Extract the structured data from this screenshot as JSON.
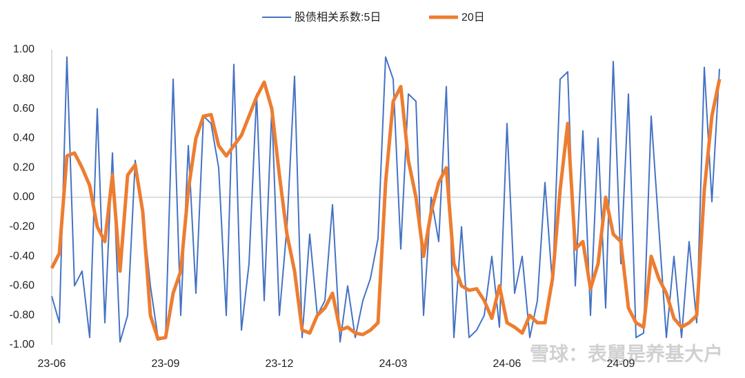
{
  "chart_data": {
    "type": "line",
    "categories": [
      "23-06",
      null,
      null,
      null,
      null,
      null,
      null,
      null,
      null,
      null,
      null,
      null,
      null,
      null,
      null,
      "23-09",
      null,
      null,
      null,
      null,
      null,
      null,
      null,
      null,
      null,
      null,
      null,
      null,
      null,
      null,
      "23-12",
      null,
      null,
      null,
      null,
      null,
      null,
      null,
      null,
      null,
      null,
      null,
      null,
      null,
      null,
      "24-03",
      null,
      null,
      null,
      null,
      null,
      null,
      null,
      null,
      null,
      null,
      null,
      null,
      null,
      null,
      "24-06",
      null,
      null,
      null,
      null,
      null,
      null,
      null,
      null,
      null,
      null,
      null,
      null,
      null,
      null,
      "24-09",
      null,
      null,
      null,
      null,
      null,
      null,
      null,
      null,
      null,
      null,
      null,
      null,
      null
    ],
    "series": [
      {
        "name": "股债相关系数:5日",
        "color": "#4472c4",
        "width": 2,
        "values": [
          -0.67,
          -0.85,
          0.95,
          -0.6,
          -0.5,
          -0.95,
          0.6,
          -0.85,
          0.3,
          -0.98,
          -0.8,
          0.25,
          -0.1,
          -0.6,
          -0.95,
          -0.95,
          0.8,
          -0.8,
          0.35,
          -0.65,
          0.55,
          0.5,
          0.2,
          -0.8,
          0.9,
          -0.9,
          -0.45,
          0.7,
          -0.7,
          0.6,
          -0.8,
          -0.2,
          0.82,
          -0.95,
          -0.25,
          -0.8,
          -0.7,
          -0.05,
          -0.98,
          -0.6,
          -0.95,
          -0.7,
          -0.55,
          -0.28,
          0.95,
          0.8,
          -0.35,
          0.7,
          0.65,
          -0.8,
          0.0,
          -0.3,
          0.75,
          -0.95,
          -0.2,
          -0.95,
          -0.9,
          -0.8,
          -0.4,
          -0.88,
          0.5,
          -0.65,
          -0.4,
          -0.95,
          -0.7,
          0.1,
          -0.6,
          0.8,
          0.85,
          -0.6,
          0.45,
          -0.8,
          0.4,
          -0.75,
          0.92,
          -0.45,
          0.7,
          -0.95,
          -0.92,
          0.55,
          -0.2,
          -0.95,
          -0.4,
          -0.95,
          -0.3,
          -0.85,
          0.88,
          -0.03,
          0.87
        ]
      },
      {
        "name": "20日",
        "color": "#ed7d31",
        "width": 5,
        "values": [
          -0.48,
          -0.38,
          0.28,
          0.3,
          0.2,
          0.08,
          -0.2,
          -0.3,
          0.15,
          -0.5,
          0.15,
          0.22,
          -0.1,
          -0.8,
          -0.96,
          -0.95,
          -0.65,
          -0.5,
          0.05,
          0.4,
          0.55,
          0.56,
          0.35,
          0.28,
          0.35,
          0.42,
          0.55,
          0.68,
          0.78,
          0.6,
          0.15,
          -0.25,
          -0.5,
          -0.9,
          -0.92,
          -0.8,
          -0.75,
          -0.65,
          -0.9,
          -0.88,
          -0.92,
          -0.93,
          -0.9,
          -0.85,
          0.1,
          0.65,
          0.75,
          0.25,
          0.0,
          -0.4,
          -0.1,
          0.1,
          0.2,
          -0.45,
          -0.6,
          -0.63,
          -0.62,
          -0.7,
          -0.82,
          -0.6,
          -0.85,
          -0.88,
          -0.92,
          -0.8,
          -0.85,
          -0.85,
          -0.55,
          0.05,
          0.5,
          -0.35,
          -0.3,
          -0.62,
          -0.45,
          0.0,
          -0.25,
          -0.3,
          -0.75,
          -0.85,
          -0.88,
          -0.4,
          -0.55,
          -0.65,
          -0.82,
          -0.88,
          -0.85,
          -0.8,
          0.05,
          0.55,
          0.8
        ]
      }
    ],
    "ylim": [
      -1,
      1
    ],
    "yticks": [
      {
        "value": -1,
        "label": "-1.00"
      },
      {
        "value": -0.8,
        "label": "-0.80"
      },
      {
        "value": -0.6,
        "label": "-0.60"
      },
      {
        "value": -0.4,
        "label": "-0.40"
      },
      {
        "value": -0.2,
        "label": "-0.20"
      },
      {
        "value": 0,
        "label": "0.00"
      },
      {
        "value": 0.2,
        "label": "0.20"
      },
      {
        "value": 0.4,
        "label": "0.40"
      },
      {
        "value": 0.6,
        "label": "0.60"
      },
      {
        "value": 0.8,
        "label": "0.80"
      },
      {
        "value": 1,
        "label": "1.00"
      }
    ],
    "grid": false,
    "legend": "top",
    "watermark": "雪球：表舅是养基大户"
  }
}
